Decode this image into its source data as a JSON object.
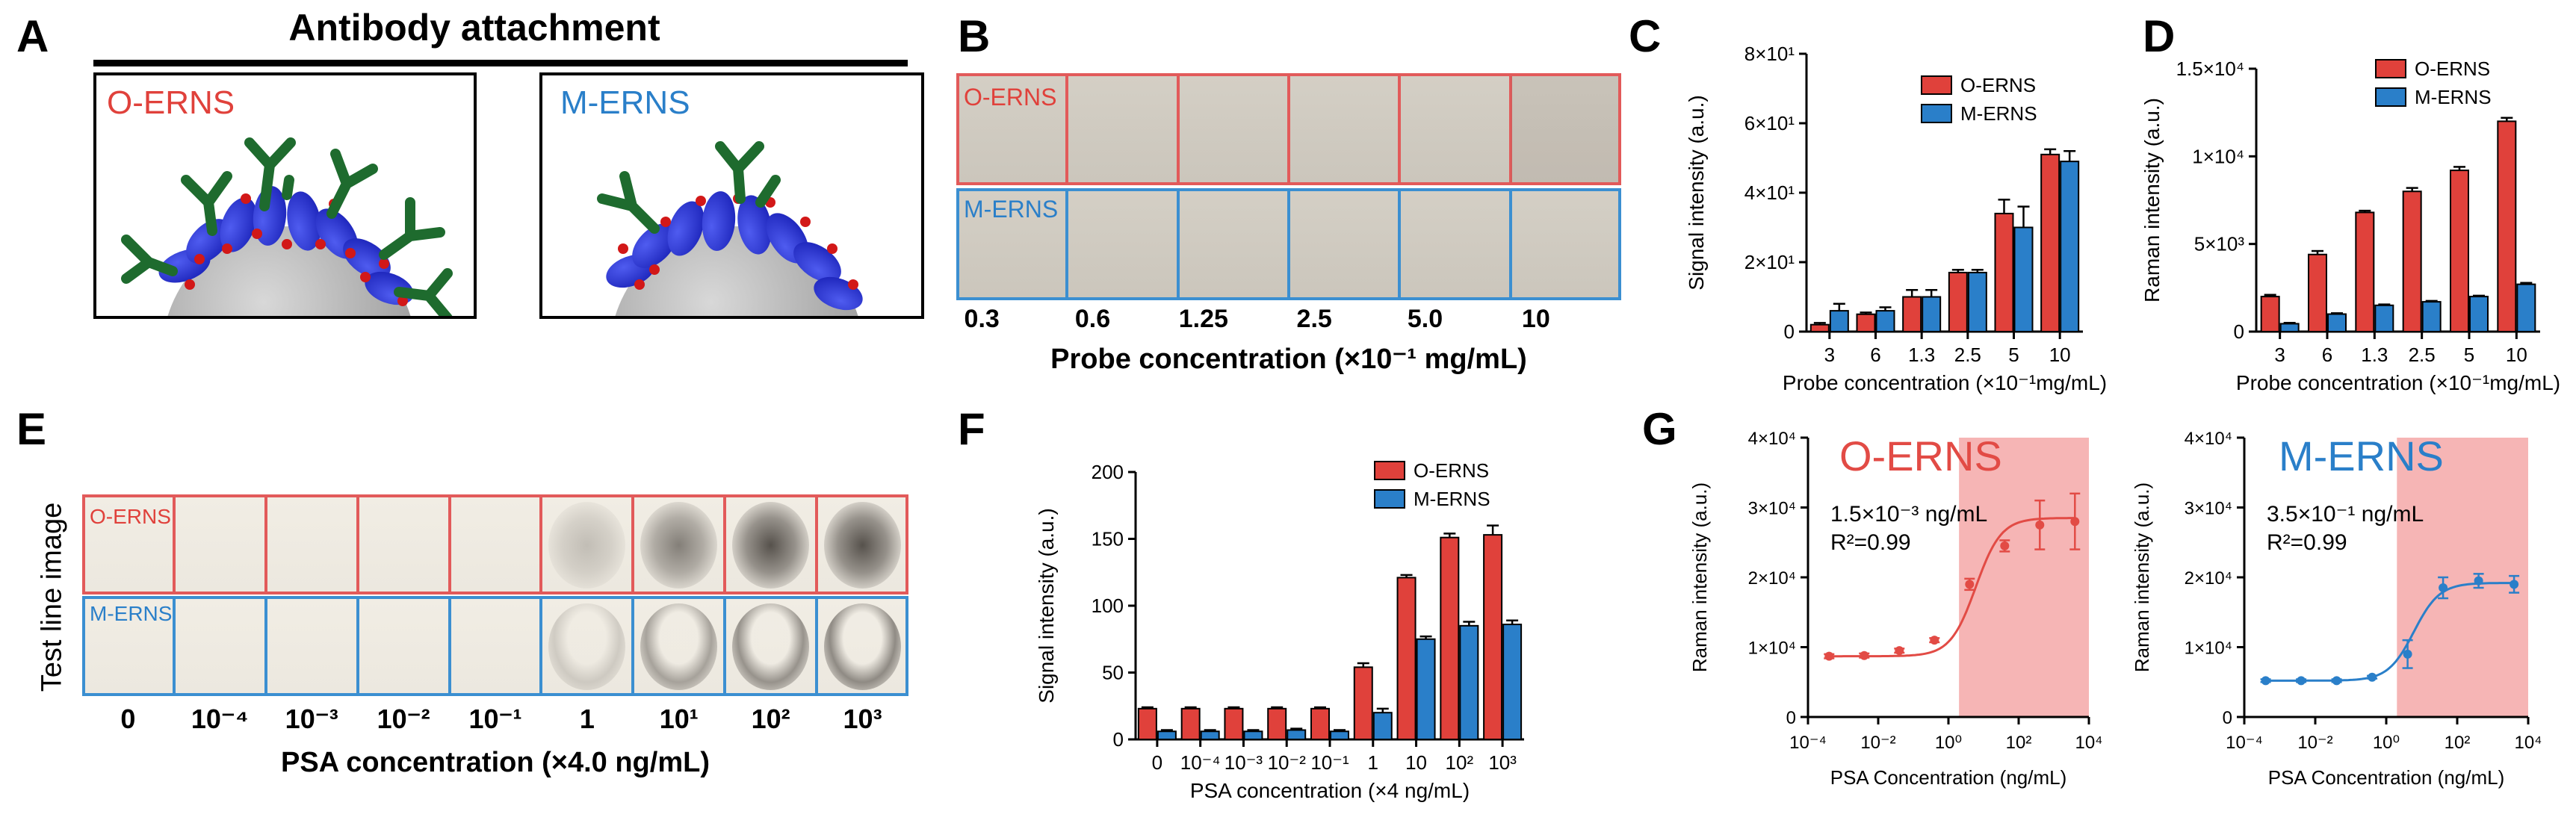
{
  "panels": {
    "a": "A",
    "b": "B",
    "c": "C",
    "d": "D",
    "e": "E",
    "f": "F",
    "g": "G"
  },
  "panelA": {
    "title": "Antibody attachment",
    "left_label": "O-ERNS",
    "right_label": "M-ERNS"
  },
  "panelB": {
    "top_label": "O-ERNS",
    "bottom_label": "M-ERNS",
    "concentrations": [
      "0.3",
      "0.6",
      "1.25",
      "2.5",
      "5.0",
      "10"
    ],
    "xlabel": "Probe concentration (×10⁻¹ mg/mL)"
  },
  "panelE": {
    "top_label": "O-ERNS",
    "bottom_label": "M-ERNS",
    "ylabel": "Test line image",
    "concentrations": [
      "0",
      "10⁻⁴",
      "10⁻³",
      "10⁻²",
      "10⁻¹",
      "1",
      "10¹",
      "10²",
      "10³"
    ],
    "xlabel": "PSA concentration (×4.0 ng/mL)",
    "spot_intensity_o": [
      0,
      0,
      0,
      0,
      0,
      0.25,
      0.6,
      0.85,
      0.85
    ],
    "spot_intensity_m": [
      0,
      0,
      0,
      0,
      0,
      0.2,
      0.45,
      0.55,
      0.6
    ]
  },
  "colors": {
    "red": "#e0413b",
    "blue": "#2a7fc9",
    "red_border": "#e25a5a",
    "blue_border": "#3b8fd1",
    "shade": "#f4a8a8"
  },
  "chart_data": [
    {
      "id": "C",
      "type": "bar",
      "categories": [
        "3",
        "6",
        "1.3",
        "2.5",
        "5",
        "10"
      ],
      "series": [
        {
          "name": "O-ERNS",
          "values": [
            2,
            5,
            10,
            17,
            34,
            51
          ],
          "errors": [
            0.5,
            0.5,
            2,
            0.8,
            4,
            1.5
          ]
        },
        {
          "name": "M-ERNS",
          "values": [
            6,
            6,
            10,
            17,
            30,
            49
          ],
          "errors": [
            2,
            1,
            2,
            0.8,
            6,
            3
          ]
        }
      ],
      "ylim": [
        0,
        80
      ],
      "yticks": [
        {
          "v": 0,
          "label": "0"
        },
        {
          "v": 20,
          "label": "2×10¹"
        },
        {
          "v": 40,
          "label": "4×10¹"
        },
        {
          "v": 60,
          "label": "6×10¹"
        },
        {
          "v": 80,
          "label": "8×10¹"
        }
      ],
      "xlabel": "Probe concentration (×10⁻¹mg/mL)",
      "ylabel": "Signal intensity (a.u.)"
    },
    {
      "id": "D",
      "type": "bar",
      "categories": [
        "3",
        "6",
        "1.3",
        "2.5",
        "5",
        "10"
      ],
      "series": [
        {
          "name": "O-ERNS",
          "values": [
            2000,
            4400,
            6800,
            8000,
            9200,
            12000
          ],
          "errors": [
            100,
            200,
            100,
            200,
            200,
            200
          ]
        },
        {
          "name": "M-ERNS",
          "values": [
            450,
            1000,
            1500,
            1700,
            2000,
            2700
          ],
          "errors": [
            50,
            50,
            50,
            50,
            50,
            80
          ]
        }
      ],
      "ylim": [
        0,
        15000
      ],
      "yticks": [
        {
          "v": 0,
          "label": "0"
        },
        {
          "v": 5000,
          "label": "5×10³"
        },
        {
          "v": 10000,
          "label": "1×10⁴"
        },
        {
          "v": 15000,
          "label": "1.5×10⁴"
        }
      ],
      "xlabel": "Probe concentration (×10⁻¹mg/mL)",
      "ylabel": "Raman intensity (a.u.)"
    },
    {
      "id": "F",
      "type": "bar",
      "categories": [
        "0",
        "10⁻⁴",
        "10⁻³",
        "10⁻²",
        "10⁻¹",
        "1",
        "10",
        "10²",
        "10³"
      ],
      "series": [
        {
          "name": "O-ERNS",
          "values": [
            23,
            23,
            23,
            23,
            23,
            54,
            121,
            151,
            153
          ],
          "errors": [
            1,
            1,
            1,
            1,
            1,
            3,
            2,
            3,
            7
          ]
        },
        {
          "name": "M-ERNS",
          "values": [
            6,
            6,
            6,
            7,
            6,
            20,
            75,
            85,
            86
          ],
          "errors": [
            1,
            1,
            1,
            1,
            1,
            3,
            2,
            3,
            3
          ]
        }
      ],
      "ylim": [
        0,
        200
      ],
      "yticks": [
        {
          "v": 0,
          "label": "0"
        },
        {
          "v": 50,
          "label": "50"
        },
        {
          "v": 100,
          "label": "100"
        },
        {
          "v": 150,
          "label": "150"
        },
        {
          "v": 200,
          "label": "200"
        }
      ],
      "xlabel": "PSA concentration (×4 ng/mL)",
      "ylabel": "Signal intensity (a.u.)"
    },
    {
      "id": "G1",
      "type": "scatter",
      "title": "O-ERNS",
      "x": [
        0.0004,
        0.004,
        0.04,
        0.4,
        4,
        40,
        400,
        4000
      ],
      "y": [
        8700,
        8800,
        9500,
        11000,
        19000,
        24500,
        27500,
        28000
      ],
      "errors": [
        300,
        300,
        300,
        300,
        800,
        800,
        3500,
        4000
      ],
      "fit": {
        "bottom": 8700,
        "top": 28500,
        "ec50": 6
      },
      "shade_from": 2,
      "annotation": "1.5×10⁻³ ng/mL",
      "r2": "R²=0.99",
      "xlim": [
        0.0001,
        10000
      ],
      "ylim": [
        0,
        40000
      ],
      "log_x": true,
      "xticks": [
        {
          "v": 0.0001,
          "label": "10⁻⁴"
        },
        {
          "v": 0.01,
          "label": "10⁻²"
        },
        {
          "v": 1,
          "label": "10⁰"
        },
        {
          "v": 100,
          "label": "10²"
        },
        {
          "v": 10000,
          "label": "10⁴"
        }
      ],
      "yticks": [
        {
          "v": 0,
          "label": "0"
        },
        {
          "v": 10000,
          "label": "1×10⁴"
        },
        {
          "v": 20000,
          "label": "2×10⁴"
        },
        {
          "v": 30000,
          "label": "3×10⁴"
        },
        {
          "v": 40000,
          "label": "4×10⁴"
        }
      ],
      "xlabel": "PSA Concentration (ng/mL)",
      "ylabel": "Raman intensity (a.u.)"
    },
    {
      "id": "G2",
      "type": "scatter",
      "title": "M-ERNS",
      "x": [
        0.0004,
        0.004,
        0.04,
        0.4,
        4,
        40,
        400,
        4000
      ],
      "y": [
        5200,
        5200,
        5200,
        5700,
        9000,
        18500,
        19500,
        19000
      ],
      "errors": [
        200,
        200,
        200,
        200,
        2000,
        1500,
        1000,
        1200
      ],
      "fit": {
        "bottom": 5200,
        "top": 19200,
        "ec50": 6
      },
      "shade_from": 2,
      "annotation": "3.5×10⁻¹ ng/mL",
      "r2": "R²=0.99",
      "xlim": [
        0.0001,
        10000
      ],
      "ylim": [
        0,
        40000
      ],
      "log_x": true,
      "xticks": [
        {
          "v": 0.0001,
          "label": "10⁻⁴"
        },
        {
          "v": 0.01,
          "label": "10⁻²"
        },
        {
          "v": 1,
          "label": "10⁰"
        },
        {
          "v": 100,
          "label": "10²"
        },
        {
          "v": 10000,
          "label": "10⁴"
        }
      ],
      "yticks": [
        {
          "v": 0,
          "label": "0"
        },
        {
          "v": 10000,
          "label": "1×10⁴"
        },
        {
          "v": 20000,
          "label": "2×10⁴"
        },
        {
          "v": 30000,
          "label": "3×10⁴"
        },
        {
          "v": 40000,
          "label": "4×10⁴"
        }
      ],
      "xlabel": "PSA Concentration (ng/mL)",
      "ylabel": "Raman intensity (a.u.)"
    }
  ]
}
